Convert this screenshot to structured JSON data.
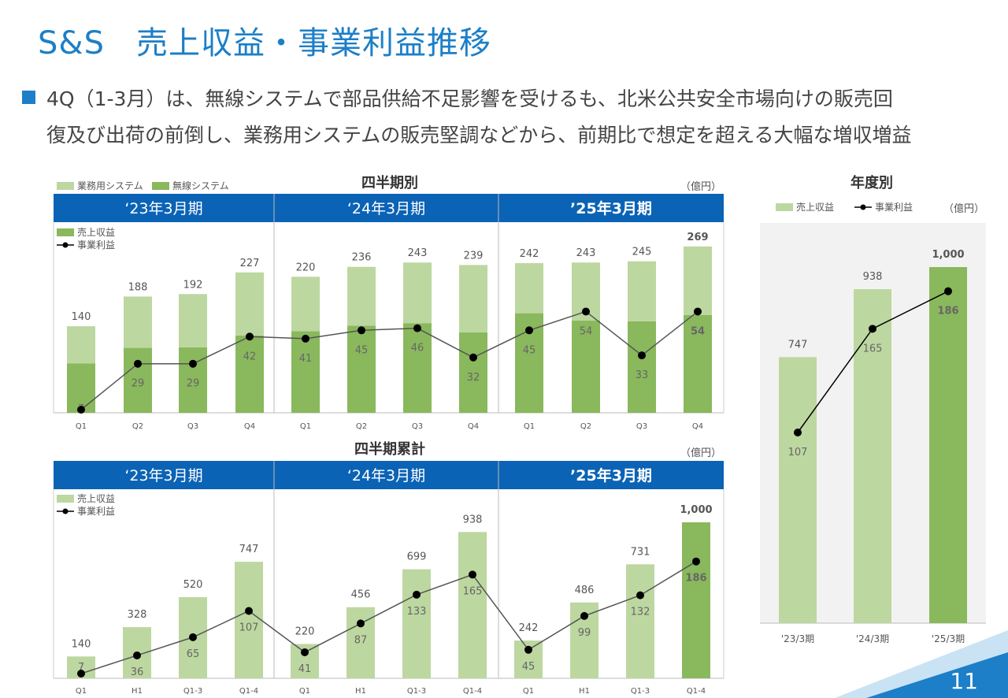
{
  "header": {
    "company": "S&S",
    "title": "売上収益・事業利益推移"
  },
  "bullet": {
    "line1": "4Q（1-3月）は、無線システムで部品供給不足影響を受けるも、北米公共安全市場向けの販売回",
    "line2": "復及び出荷の前倒し、業務用システムの販売堅調などから、前期比で想定を超える大幅な増収増益"
  },
  "page_number": "11",
  "colors": {
    "accent": "#1c7fc7",
    "header_band": "#0b63b5",
    "light_green": "#bdd7a0",
    "dark_green": "#8ab85d",
    "line": "#555555"
  },
  "chart_data": [
    {
      "type": "bar",
      "title": "四半期別",
      "unit": "（億円）",
      "stacked": true,
      "top_legend": [
        "業務用システム",
        "無線システム"
      ],
      "inner_legend": [
        "売上収益",
        "事業利益"
      ],
      "period_headers": [
        "‘23年3月期",
        "‘24年3月期",
        "’25年3月期"
      ],
      "categories": [
        "Q1",
        "Q2",
        "Q3",
        "Q4",
        "Q1",
        "Q2",
        "Q3",
        "Q4",
        "Q1",
        "Q2",
        "Q3",
        "Q4"
      ],
      "series": [
        {
          "name": "無線システム",
          "values": [
            80,
            105,
            106,
            125,
            132,
            141,
            145,
            130,
            161,
            149,
            148,
            158
          ]
        },
        {
          "name": "業務用システム",
          "values": [
            60,
            83,
            86,
            102,
            88,
            95,
            98,
            109,
            81,
            94,
            97,
            111
          ]
        }
      ],
      "totals": [
        "140",
        "188",
        "192",
        "227",
        "220",
        "236",
        "243",
        "239",
        "242",
        "243",
        "245",
        "269"
      ],
      "line": {
        "name": "事業利益",
        "values": [
          7,
          29,
          29,
          42,
          41,
          45,
          46,
          32,
          45,
          54,
          33,
          54
        ],
        "labels": [
          "7",
          "29",
          "29",
          "42",
          "41",
          "45",
          "46",
          "32",
          "45",
          "54",
          "33",
          "54"
        ]
      },
      "ylim": [
        0,
        285
      ]
    },
    {
      "type": "bar",
      "title": "四半期累計",
      "unit": "（億円）",
      "inner_legend": [
        "売上収益",
        "事業利益"
      ],
      "period_headers": [
        "‘23年3月期",
        "‘24年3月期",
        "’25年3月期"
      ],
      "categories": [
        "Q1",
        "H1",
        "Q1-3",
        "Q1-4",
        "Q1",
        "H1",
        "Q1-3",
        "Q1-4",
        "Q1",
        "H1",
        "Q1-3",
        "Q1-4"
      ],
      "series": [
        {
          "name": "売上収益",
          "values": [
            140,
            328,
            520,
            747,
            220,
            456,
            699,
            938,
            242,
            486,
            731,
            1000
          ]
        }
      ],
      "totals": [
        "140",
        "328",
        "520",
        "747",
        "220",
        "456",
        "699",
        "938",
        "242",
        "486",
        "731",
        "1,000"
      ],
      "line": {
        "name": "事業利益",
        "values": [
          7,
          36,
          65,
          107,
          41,
          87,
          133,
          165,
          45,
          99,
          132,
          186
        ],
        "labels": [
          "7",
          "36",
          "65",
          "107",
          "41",
          "87",
          "133",
          "165",
          "45",
          "99",
          "132",
          "186"
        ]
      },
      "ylim": [
        0,
        1100
      ]
    },
    {
      "type": "bar",
      "title": "年度別",
      "unit": "（億円）",
      "legend": [
        "売上収益",
        "事業利益"
      ],
      "categories": [
        "'23/3期",
        "'24/3期",
        "'25/3期"
      ],
      "series": [
        {
          "name": "売上収益",
          "values": [
            747,
            938,
            1000
          ],
          "labels": [
            "747",
            "938",
            "1,000"
          ]
        }
      ],
      "line": {
        "name": "事業利益",
        "values": [
          107,
          165,
          186
        ],
        "labels": [
          "107",
          "165",
          "186"
        ]
      },
      "ylim": [
        0,
        1000
      ]
    }
  ]
}
